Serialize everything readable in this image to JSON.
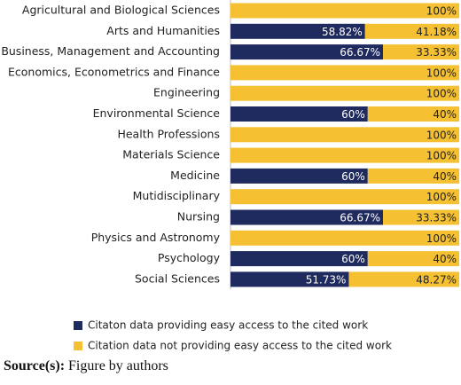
{
  "chart_data": {
    "type": "stacked-bar-horizontal",
    "categories": [
      "Agricultural and Biological Sciences",
      "Arts and Humanities",
      "Business, Management and Accounting",
      "Economics, Econometrics and Finance",
      "Engineering",
      "Environmental Science",
      "Health Professions",
      "Materials Science",
      "Medicine",
      "Mutidisciplinary",
      "Nursing",
      "Physics and Astronomy",
      "Psychology",
      "Social Sciences"
    ],
    "series": [
      {
        "name": "Citaton data providing easy access to the cited work",
        "color": "#1f2a5e",
        "values": [
          0,
          58.82,
          66.67,
          0,
          0,
          60,
          0,
          0,
          60,
          0,
          66.67,
          0,
          60,
          51.73
        ],
        "value_labels": [
          null,
          "58.82%",
          "66.67%",
          null,
          null,
          "60%",
          null,
          null,
          "60%",
          null,
          "66.67%",
          null,
          "60%",
          "51.73%"
        ]
      },
      {
        "name": "Citation data not providing easy access to the cited work",
        "color": "#f5c133",
        "values": [
          100,
          41.18,
          33.33,
          100,
          100,
          40,
          100,
          100,
          40,
          100,
          33.33,
          100,
          40,
          48.27
        ],
        "value_labels": [
          "100%",
          "41.18%",
          "33.33%",
          "100%",
          "100%",
          "40%",
          "100%",
          "100%",
          "40%",
          "100%",
          "33.33%",
          "100%",
          "40%",
          "48.27%"
        ]
      }
    ]
  },
  "source": {
    "label": "Source(s):",
    "text": "Figure by authors"
  }
}
